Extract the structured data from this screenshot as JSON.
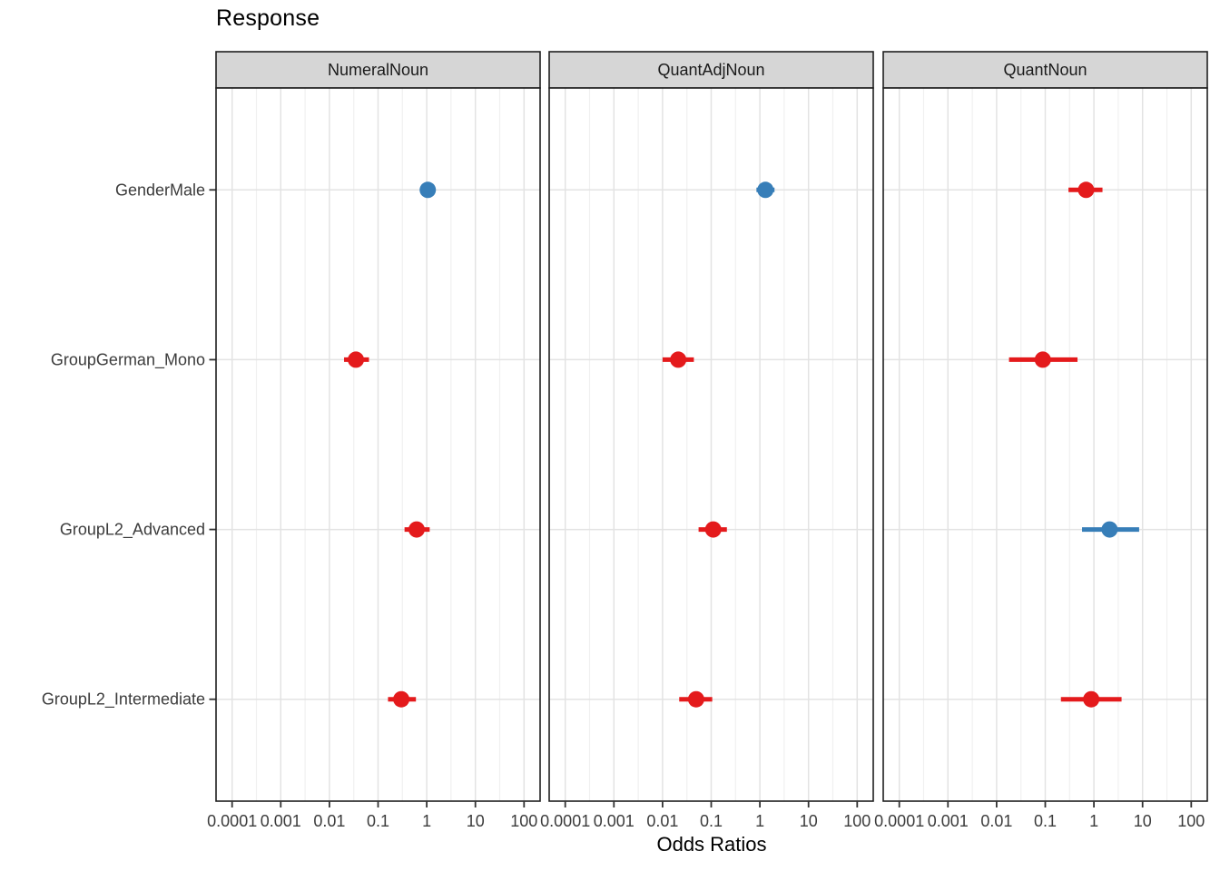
{
  "chart_data": {
    "type": "scatter",
    "subtype": "forest-plot-dot-whisker",
    "title": "Response",
    "xlabel": "Odds Ratios",
    "x_scale": "log10",
    "x_tick_values": [
      0.0001,
      0.001,
      0.01,
      0.1,
      1,
      10,
      100
    ],
    "x_tick_labels": [
      "0.0001",
      "0.001",
      "0.01",
      "0.1",
      "1",
      "10",
      "100"
    ],
    "x_domain_log10": [
      -4.33,
      2.33
    ],
    "y_categories_top_to_bottom": [
      "GenderMale",
      "GroupGerman_Mono",
      "GroupL2_Advanced",
      "GroupL2_Intermediate"
    ],
    "grid": true,
    "legend": "none",
    "point_colors": {
      "or_gt_1": "#377EB8",
      "or_lt_1": "#E41A1C"
    },
    "facets": [
      {
        "label": "NumeralNoun",
        "points": [
          {
            "term": "GenderMale",
            "odds_ratio": 1.05,
            "ci_low": 0.8,
            "ci_high": 1.4,
            "color": "#377EB8"
          },
          {
            "term": "GroupGerman_Mono",
            "odds_ratio": 0.035,
            "ci_low": 0.02,
            "ci_high": 0.065,
            "color": "#E41A1C"
          },
          {
            "term": "GroupL2_Advanced",
            "odds_ratio": 0.62,
            "ci_low": 0.35,
            "ci_high": 1.15,
            "color": "#E41A1C"
          },
          {
            "term": "GroupL2_Intermediate",
            "odds_ratio": 0.3,
            "ci_low": 0.16,
            "ci_high": 0.6,
            "color": "#E41A1C"
          }
        ]
      },
      {
        "label": "QuantAdjNoun",
        "points": [
          {
            "term": "GenderMale",
            "odds_ratio": 1.3,
            "ci_low": 0.85,
            "ci_high": 2.0,
            "color": "#377EB8"
          },
          {
            "term": "GroupGerman_Mono",
            "odds_ratio": 0.021,
            "ci_low": 0.01,
            "ci_high": 0.044,
            "color": "#E41A1C"
          },
          {
            "term": "GroupL2_Advanced",
            "odds_ratio": 0.11,
            "ci_low": 0.055,
            "ci_high": 0.21,
            "color": "#E41A1C"
          },
          {
            "term": "GroupL2_Intermediate",
            "odds_ratio": 0.049,
            "ci_low": 0.022,
            "ci_high": 0.105,
            "color": "#E41A1C"
          }
        ]
      },
      {
        "label": "QuantNoun",
        "points": [
          {
            "term": "GenderMale",
            "odds_ratio": 0.69,
            "ci_low": 0.3,
            "ci_high": 1.5,
            "color": "#E41A1C"
          },
          {
            "term": "GroupGerman_Mono",
            "odds_ratio": 0.089,
            "ci_low": 0.018,
            "ci_high": 0.46,
            "color": "#E41A1C"
          },
          {
            "term": "GroupL2_Advanced",
            "odds_ratio": 2.1,
            "ci_low": 0.57,
            "ci_high": 8.5,
            "color": "#377EB8"
          },
          {
            "term": "GroupL2_Intermediate",
            "odds_ratio": 0.88,
            "ci_low": 0.21,
            "ci_high": 3.7,
            "color": "#E41A1C"
          }
        ]
      }
    ],
    "style": {
      "strip_fill": "#D6D6D6",
      "strip_text_color": "#1A1A1A",
      "panel_border": "#1F1F1F",
      "panel_fill": "#FFFFFF",
      "grid_major": "#E3E3E3",
      "grid_minor": "#F0F0F0",
      "tick_color": "#333333",
      "axis_text_color": "#3C3C3C"
    }
  }
}
